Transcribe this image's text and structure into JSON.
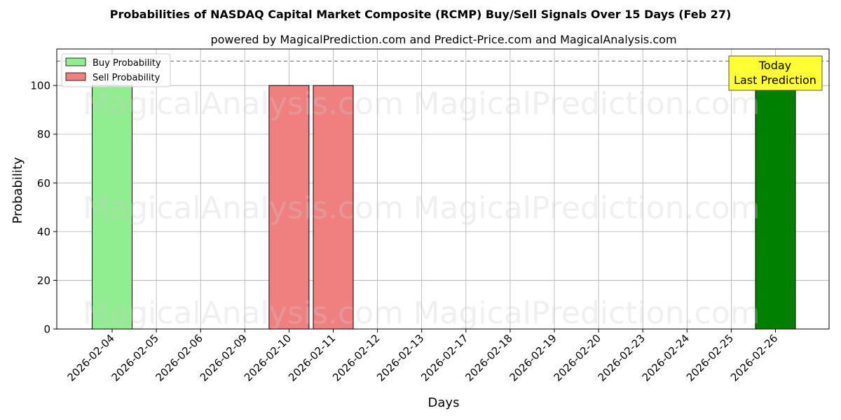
{
  "chart_data": {
    "type": "bar",
    "title": "Probabilities of NASDAQ Capital Market Composite (RCMP) Buy/Sell Signals Over 15 Days (Feb 27)",
    "subtitle": "powered by MagicalPrediction.com and Predict-Price.com and MagicalAnalysis.com",
    "xlabel": "Days",
    "ylabel": "Probability",
    "ylim": [
      0,
      115
    ],
    "yticks": [
      0,
      20,
      40,
      60,
      80,
      100
    ],
    "categories": [
      "2026-02-04",
      "2026-02-05",
      "2026-02-06",
      "2026-02-09",
      "2026-02-10",
      "2026-02-11",
      "2026-02-12",
      "2026-02-13",
      "2026-02-17",
      "2026-02-18",
      "2026-02-19",
      "2026-02-20",
      "2026-02-23",
      "2026-02-24",
      "2026-02-25",
      "2026-02-26"
    ],
    "series": [
      {
        "name": "Buy Probability",
        "color": "#90ee90",
        "bars": [
          {
            "x": "2026-02-04",
            "value": 100
          }
        ]
      },
      {
        "name": "Sell Probability",
        "color": "#f08080",
        "bars": [
          {
            "x": "2026-02-10",
            "value": 100
          },
          {
            "x": "2026-02-11",
            "value": 100
          }
        ]
      }
    ],
    "prediction_bar": {
      "x": "2026-02-26",
      "value": 100,
      "color": "#008000"
    },
    "reference_line": {
      "y": 110,
      "style": "dashed"
    },
    "annotation": {
      "line1": "Today",
      "line2": "Last Prediction",
      "background": "#ffff33"
    },
    "legend": {
      "placement": "top-left"
    },
    "grid": true,
    "watermarks": [
      "MagicalAnalysis.com",
      "MagicalPrediction.com"
    ]
  }
}
